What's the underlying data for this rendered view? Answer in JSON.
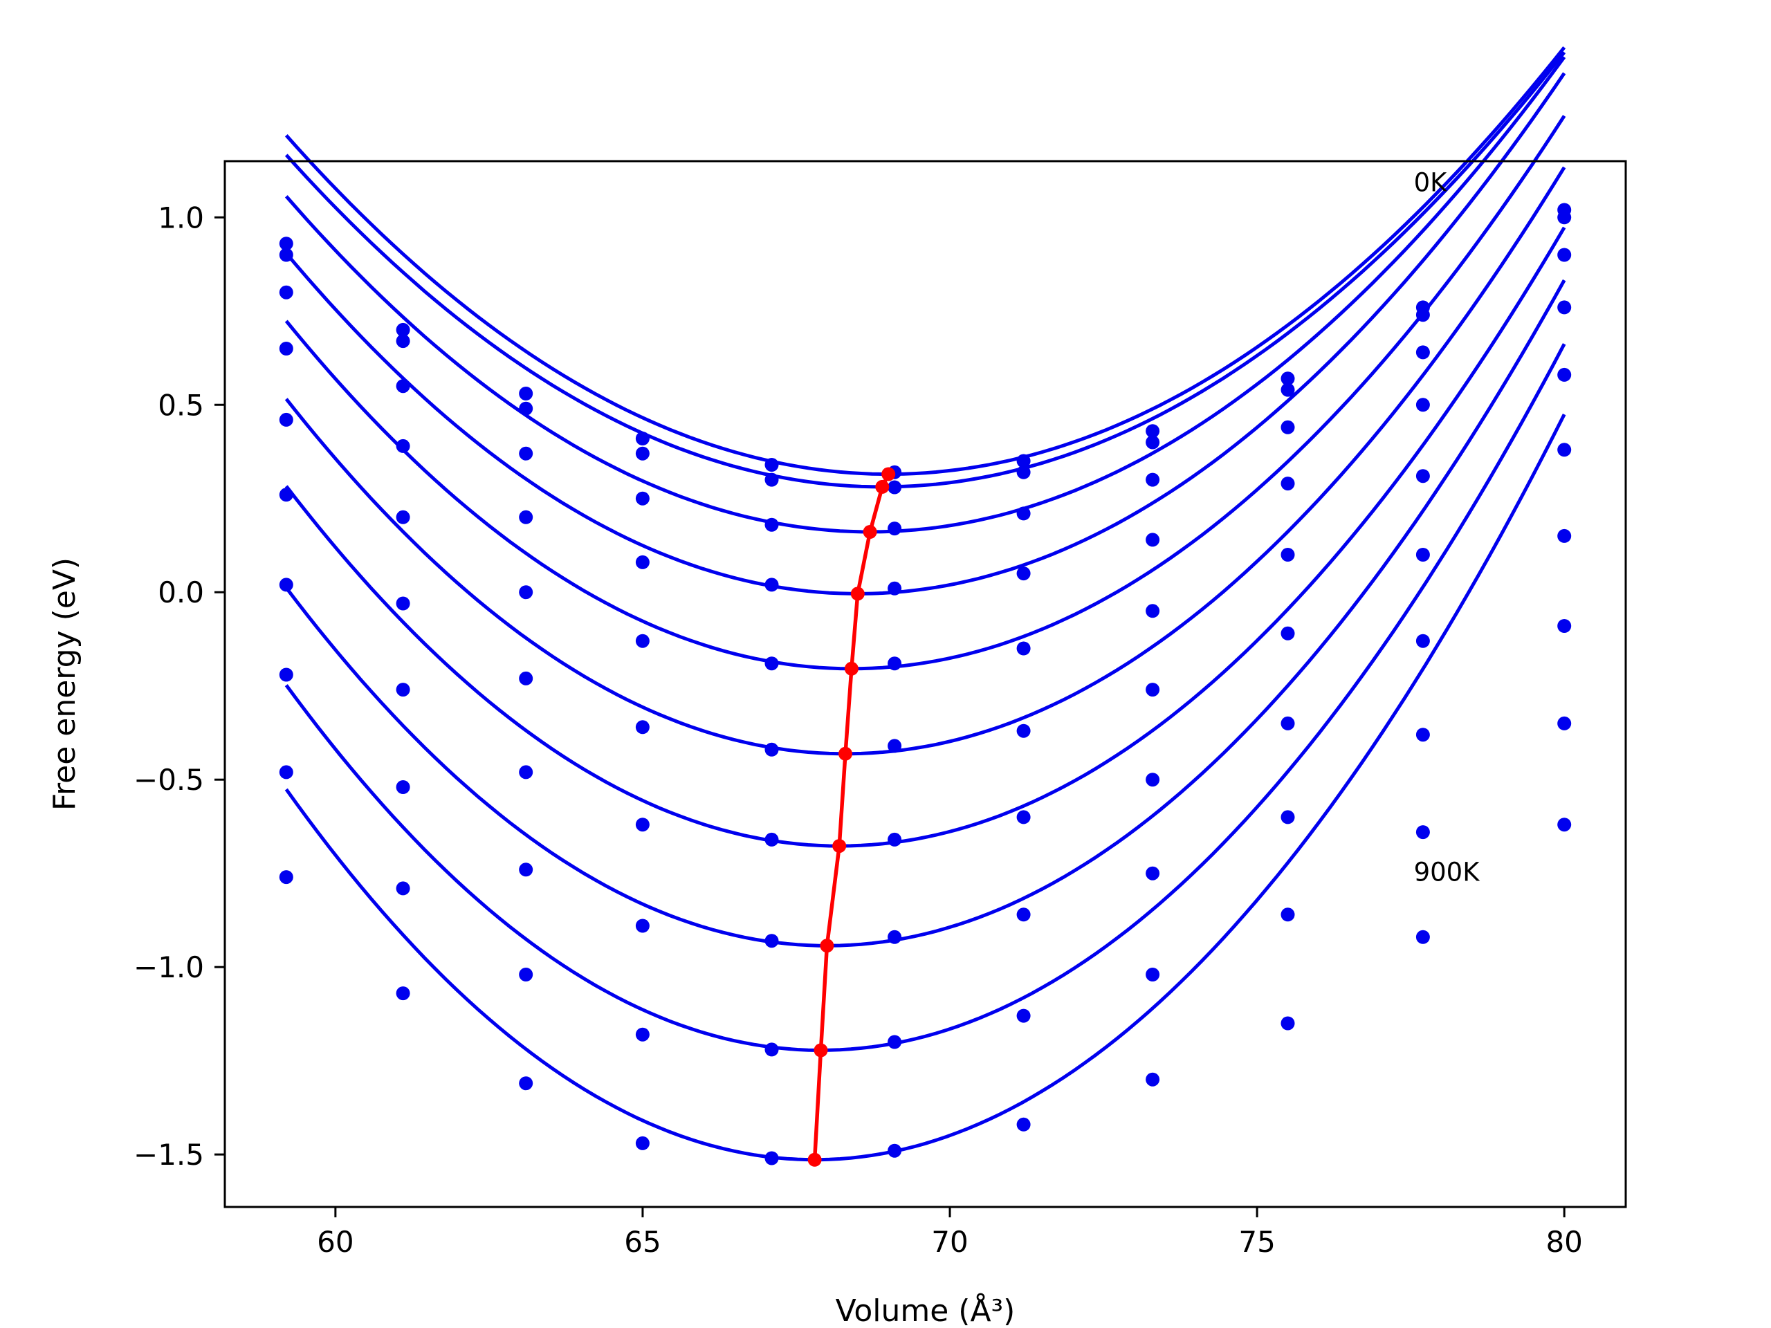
{
  "chart_data": {
    "type": "line",
    "xlabel": "Volume (Å³)",
    "ylabel": "Free energy (eV)",
    "xlim": [
      58.2,
      81.0
    ],
    "ylim": [
      -1.64,
      1.15
    ],
    "xticks": [
      60,
      65,
      70,
      75,
      80
    ],
    "yticks": [
      -1.5,
      -1.0,
      -0.5,
      0.0,
      0.5,
      1.0
    ],
    "xtick_labels": [
      "60",
      "65",
      "70",
      "75",
      "80"
    ],
    "ytick_labels": [
      "−1.5",
      "−1.0",
      "−0.5",
      "0.0",
      "0.5",
      "1.0"
    ],
    "grid": false,
    "annotations": [
      {
        "text": "0K",
        "x": 77.55,
        "y": 1.07
      },
      {
        "text": "900K",
        "x": 77.55,
        "y": -0.77
      }
    ],
    "colors": {
      "curves": "#0000ee",
      "minimum_path": "#ff0000"
    },
    "x": [
      59.2,
      61.1,
      63.1,
      65.0,
      67.1,
      69.1,
      71.2,
      73.3,
      75.5,
      77.7,
      80.0
    ],
    "series": [
      {
        "values": [
          0.93,
          0.7,
          0.53,
          0.41,
          0.34,
          0.32,
          0.35,
          0.43,
          0.57,
          0.76,
          1.02
        ],
        "fit": {
          "a": 0.00941,
          "v0": 69.0,
          "e0": 0.315
        }
      },
      {
        "values": [
          0.9,
          0.67,
          0.49,
          0.37,
          0.3,
          0.28,
          0.32,
          0.4,
          0.54,
          0.74,
          1.0
        ],
        "fit": {
          "a": 0.00941,
          "v0": 68.9,
          "e0": 0.281
        }
      },
      {
        "values": [
          0.8,
          0.55,
          0.37,
          0.25,
          0.18,
          0.17,
          0.21,
          0.3,
          0.44,
          0.64,
          0.9
        ],
        "fit": {
          "a": 0.00992,
          "v0": 68.7,
          "e0": 0.161
        }
      },
      {
        "values": [
          0.65,
          0.39,
          0.2,
          0.08,
          0.02,
          0.01,
          0.05,
          0.14,
          0.29,
          0.5,
          0.76
        ],
        "fit": {
          "a": 0.0105,
          "v0": 68.5,
          "e0": -0.004
        }
      },
      {
        "values": [
          0.46,
          0.2,
          0.0,
          -0.13,
          -0.19,
          -0.19,
          -0.15,
          -0.05,
          0.1,
          0.31,
          0.58
        ],
        "fit": {
          "a": 0.01096,
          "v0": 68.4,
          "e0": -0.204
        }
      },
      {
        "values": [
          0.26,
          -0.03,
          -0.23,
          -0.36,
          -0.42,
          -0.41,
          -0.37,
          -0.26,
          -0.11,
          0.1,
          0.38
        ],
        "fit": {
          "a": 0.01143,
          "v0": 68.3,
          "e0": -0.431
        }
      },
      {
        "values": [
          0.02,
          -0.26,
          -0.48,
          -0.62,
          -0.66,
          -0.66,
          -0.6,
          -0.5,
          -0.35,
          -0.13,
          0.15
        ],
        "fit": {
          "a": 0.01185,
          "v0": 68.2,
          "e0": -0.677
        }
      },
      {
        "values": [
          -0.22,
          -0.52,
          -0.74,
          -0.89,
          -0.93,
          -0.92,
          -0.86,
          -0.75,
          -0.6,
          -0.38,
          -0.09
        ],
        "fit": {
          "a": 0.01233,
          "v0": 68.0,
          "e0": -0.943
        }
      },
      {
        "values": [
          -0.48,
          -0.79,
          -1.02,
          -1.18,
          -1.22,
          -1.2,
          -1.13,
          -1.02,
          -0.86,
          -0.64,
          -0.35
        ],
        "fit": {
          "a": 0.01287,
          "v0": 67.9,
          "e0": -1.222
        }
      },
      {
        "values": [
          -0.76,
          -1.07,
          -1.31,
          -1.47,
          -1.51,
          -1.49,
          -1.42,
          -1.3,
          -1.15,
          -0.92,
          -0.62
        ],
        "fit": {
          "a": 0.01336,
          "v0": 67.8,
          "e0": -1.514
        }
      }
    ],
    "minimum_path": {
      "x": [
        69.0,
        68.9,
        68.7,
        68.5,
        68.4,
        68.3,
        68.2,
        68.0,
        67.9,
        67.8
      ],
      "y": [
        0.315,
        0.281,
        0.161,
        -0.004,
        -0.204,
        -0.431,
        -0.677,
        -0.943,
        -1.222,
        -1.514
      ]
    }
  }
}
